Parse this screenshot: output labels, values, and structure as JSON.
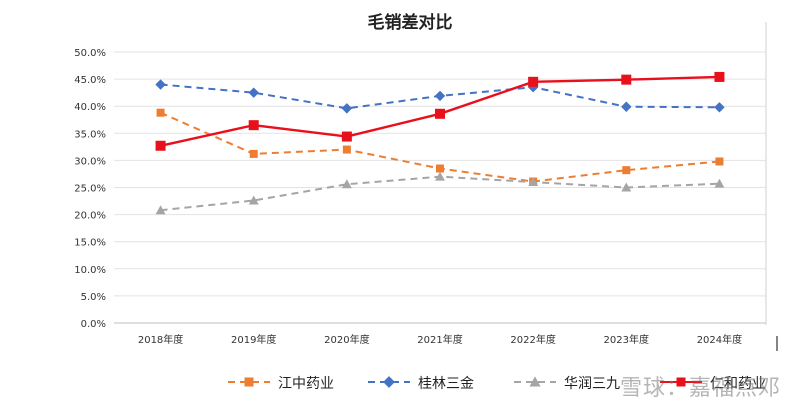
{
  "chart_data": {
    "type": "line",
    "title": "毛销差对比",
    "xlabel": "",
    "ylabel": "",
    "categories": [
      "2018年度",
      "2019年度",
      "2020年度",
      "2021年度",
      "2022年度",
      "2023年度",
      "2024年度"
    ],
    "ylim": [
      0,
      50
    ],
    "yticks": [
      "0.0%",
      "5.0%",
      "10.0%",
      "15.0%",
      "20.0%",
      "25.0%",
      "30.0%",
      "35.0%",
      "40.0%",
      "45.0%",
      "50.0%"
    ],
    "grid": true,
    "legend_position": "bottom",
    "series": [
      {
        "name": "江中药业",
        "color": "#ED7D31",
        "style": "dashed",
        "marker": "square",
        "values": [
          38.8,
          31.2,
          32.0,
          28.5,
          26.1,
          28.2,
          29.8
        ]
      },
      {
        "name": "桂林三金",
        "color": "#4472C4",
        "style": "dashed",
        "marker": "diamond",
        "values": [
          44.0,
          42.5,
          39.6,
          41.9,
          43.5,
          39.9,
          39.8
        ]
      },
      {
        "name": "华润三九",
        "color": "#A5A5A5",
        "style": "dashed",
        "marker": "triangle",
        "values": [
          20.8,
          22.6,
          25.6,
          27.0,
          26.0,
          25.0,
          25.7
        ]
      },
      {
        "name": "仁和药业",
        "color": "#E8101B",
        "style": "solid",
        "marker": "square",
        "values": [
          32.7,
          36.5,
          34.4,
          38.6,
          44.5,
          44.9,
          45.4
        ]
      }
    ]
  },
  "watermark": "雪球：嘉福点邓"
}
